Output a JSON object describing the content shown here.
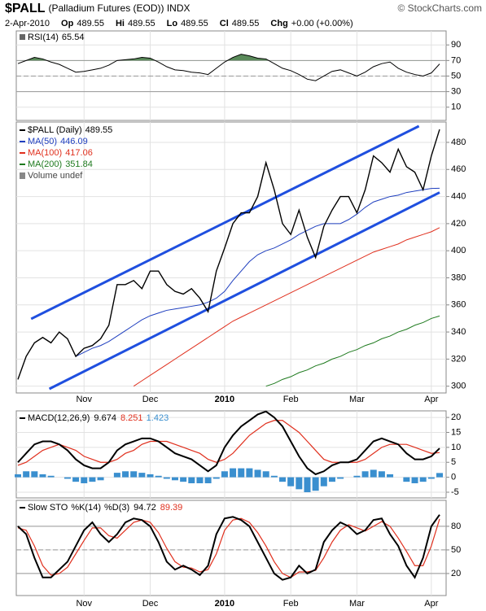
{
  "header": {
    "symbol": "$PALL",
    "name": "(Palladium Futures (EOD)) INDX",
    "credit": "© StockCharts.com",
    "date": "2-Apr-2010",
    "quote": [
      {
        "label": "Op",
        "value": 489.55
      },
      {
        "label": "Hi",
        "value": 489.55
      },
      {
        "label": "Lo",
        "value": 489.55
      },
      {
        "label": "Cl",
        "value": 489.55
      },
      {
        "label": "Chg",
        "value": "+0.00 (+0.00%)"
      }
    ]
  },
  "chart_data": [
    {
      "type": "line",
      "ylim": [
        -7,
        108
      ],
      "yticks": [
        10,
        30,
        50,
        70,
        90
      ],
      "bands": [
        30,
        70
      ],
      "midline": 50,
      "fill_color": "#5a8a5a",
      "series": [
        {
          "name": "RSI(14)",
          "color": "#000000",
          "values": [
            66,
            70,
            74,
            72,
            68,
            65,
            60,
            55,
            56,
            58,
            60,
            64,
            70,
            71,
            72,
            74,
            73,
            68,
            62,
            58,
            57,
            55,
            54,
            52,
            60,
            68,
            74,
            78,
            76,
            73,
            72,
            66,
            60,
            57,
            52,
            46,
            44,
            50,
            56,
            58,
            54,
            50,
            55,
            62,
            66,
            68,
            60,
            55,
            52,
            50,
            54,
            65.54
          ]
        }
      ]
    },
    {
      "type": "line",
      "ylim": [
        295,
        495
      ],
      "yticks": [
        300,
        320,
        340,
        360,
        380,
        400,
        420,
        440,
        460,
        480
      ],
      "categories": [
        null,
        null,
        null,
        null,
        null,
        null,
        null,
        null,
        "Nov",
        null,
        null,
        null,
        null,
        null,
        null,
        null,
        "Dec",
        null,
        null,
        null,
        null,
        null,
        null,
        null,
        null,
        "2010",
        null,
        null,
        null,
        null,
        null,
        null,
        null,
        "Feb",
        null,
        null,
        null,
        null,
        null,
        null,
        null,
        "Mar",
        null,
        null,
        null,
        null,
        null,
        null,
        null,
        null,
        "Apr",
        null
      ],
      "volume_label": "Volume undef",
      "series": [
        {
          "name": "$PALL (Daily)",
          "color": "#000000",
          "values": [
            305,
            322,
            332,
            336,
            332,
            340,
            335,
            322,
            328,
            330,
            335,
            345,
            375,
            375,
            378,
            372,
            385,
            385,
            375,
            370,
            368,
            372,
            365,
            355,
            385,
            402,
            420,
            428,
            428,
            440,
            465,
            445,
            420,
            412,
            430,
            410,
            395,
            418,
            430,
            440,
            440,
            428,
            445,
            470,
            465,
            458,
            475,
            462,
            458,
            445,
            470,
            489.55
          ]
        },
        {
          "name": "MA(50)",
          "color": "#1f3fbf",
          "values": [
            null,
            null,
            null,
            null,
            null,
            null,
            null,
            322,
            325,
            328,
            330,
            333,
            337,
            341,
            345,
            349,
            352,
            354,
            356,
            357,
            358,
            359,
            360,
            362,
            365,
            370,
            378,
            385,
            392,
            397,
            400,
            402,
            405,
            408,
            412,
            415,
            418,
            420,
            420,
            420,
            423,
            427,
            432,
            436,
            438,
            440,
            441,
            443,
            444,
            445,
            446,
            446.09
          ]
        },
        {
          "name": "MA(100)",
          "color": "#e0301e",
          "values": [
            null,
            null,
            null,
            null,
            null,
            null,
            null,
            null,
            null,
            null,
            null,
            null,
            null,
            null,
            300,
            304,
            308,
            312,
            316,
            320,
            324,
            328,
            332,
            336,
            340,
            344,
            348,
            351,
            354,
            357,
            360,
            363,
            366,
            369,
            372,
            375,
            378,
            381,
            384,
            387,
            390,
            393,
            396,
            399,
            401,
            403,
            405,
            408,
            410,
            412,
            414,
            417.06
          ]
        },
        {
          "name": "MA(200)",
          "color": "#1e7a1e",
          "values": [
            null,
            null,
            null,
            null,
            null,
            null,
            null,
            null,
            null,
            null,
            null,
            null,
            null,
            null,
            null,
            null,
            null,
            null,
            null,
            null,
            null,
            null,
            null,
            null,
            null,
            null,
            null,
            null,
            null,
            null,
            300,
            302,
            305,
            307,
            310,
            312,
            315,
            317,
            320,
            322,
            325,
            327,
            330,
            332,
            335,
            337,
            340,
            342,
            345,
            347,
            350,
            351.84
          ]
        }
      ],
      "trendlines": [
        {
          "color": "#1f4fdf",
          "start": [
            1.6,
            349.7
          ],
          "end": [
            48.5,
            492
          ]
        },
        {
          "color": "#1f4fdf",
          "start": [
            3.8,
            298
          ],
          "end": [
            51,
            443
          ]
        }
      ]
    },
    {
      "type": "macd",
      "ylim": [
        -6.9,
        22.2
      ],
      "yticks": [
        -5,
        0,
        5,
        10,
        15,
        20
      ],
      "series": [
        {
          "name": "MACD(12,26,9)",
          "color": "#000000",
          "values": [
            5,
            8,
            11,
            12,
            12,
            11,
            9,
            6,
            4,
            3,
            3,
            5,
            9,
            11,
            12,
            13,
            13,
            12,
            10,
            8,
            7,
            6,
            4,
            2,
            4,
            10,
            14,
            17,
            19,
            21,
            22,
            20,
            17,
            12,
            7,
            3,
            1,
            2,
            4,
            5,
            5,
            6,
            9,
            12,
            13,
            12,
            11,
            8,
            6,
            6,
            7,
            9.674
          ]
        },
        {
          "color": "#e0301e",
          "values": [
            4,
            5,
            7,
            9,
            10,
            11,
            10,
            9,
            7,
            6,
            5,
            5,
            6,
            8,
            9,
            11,
            12,
            12,
            12,
            11,
            10,
            9,
            8,
            6,
            5,
            6,
            8,
            11,
            14,
            16,
            18,
            19,
            19,
            17,
            15,
            12,
            9,
            6,
            5,
            5,
            5,
            5,
            6,
            8,
            10,
            11,
            11,
            11,
            10,
            9,
            8,
            8.251
          ]
        },
        {
          "color": "#3a8fcf",
          "values": [
            1,
            2,
            2,
            1,
            0.5,
            0,
            -0.5,
            -1.5,
            -2,
            -1.5,
            -1,
            0,
            1.5,
            2,
            2,
            1.5,
            1,
            0.5,
            -0.5,
            -1,
            -1.5,
            -2,
            -2,
            -2,
            -0.5,
            2,
            3,
            3,
            3,
            2.5,
            2,
            0.5,
            -1.5,
            -3,
            -4,
            -5,
            -4.5,
            -3,
            -1.5,
            -0.5,
            0,
            0.5,
            2,
            2.5,
            2,
            1,
            0,
            -1.5,
            -2,
            -1.5,
            -0.5,
            1.423
          ]
        }
      ]
    },
    {
      "type": "line",
      "title": "Slow STO",
      "ylim": [
        -8,
        113
      ],
      "yticks": [
        20,
        50,
        80
      ],
      "bands": [
        20,
        80
      ],
      "midline": 50,
      "series": [
        {
          "name": "%K(14)",
          "color": "#000000",
          "values": [
            80,
            70,
            40,
            15,
            15,
            25,
            35,
            55,
            75,
            85,
            70,
            60,
            70,
            85,
            90,
            88,
            80,
            60,
            35,
            25,
            30,
            25,
            18,
            30,
            70,
            90,
            92,
            88,
            80,
            60,
            40,
            20,
            12,
            15,
            30,
            20,
            25,
            60,
            75,
            85,
            80,
            70,
            75,
            88,
            90,
            70,
            55,
            30,
            15,
            40,
            80,
            94.72
          ]
        },
        {
          "name": "%D(3)",
          "color": "#e0301e",
          "values": [
            78,
            75,
            55,
            30,
            18,
            20,
            28,
            45,
            62,
            78,
            78,
            68,
            65,
            75,
            85,
            88,
            85,
            72,
            52,
            35,
            28,
            27,
            22,
            25,
            45,
            75,
            88,
            90,
            85,
            72,
            55,
            35,
            20,
            15,
            22,
            22,
            24,
            40,
            60,
            75,
            82,
            78,
            74,
            80,
            86,
            80,
            65,
            48,
            30,
            30,
            55,
            89.39
          ]
        }
      ]
    }
  ]
}
